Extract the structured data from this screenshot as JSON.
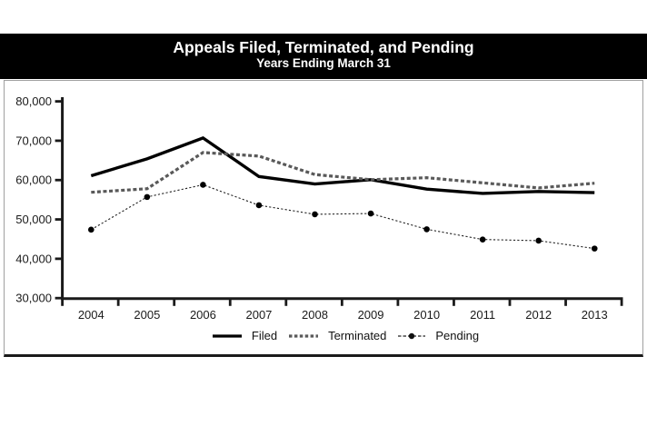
{
  "banner": {
    "title": "Appeals Filed, Terminated, and Pending",
    "subtitle": "Years Ending March 31"
  },
  "chart_data": {
    "type": "line",
    "title": "Appeals Filed, Terminated, and Pending",
    "subtitle": "Years Ending March 31",
    "categories": [
      "2004",
      "2005",
      "2006",
      "2007",
      "2008",
      "2009",
      "2010",
      "2011",
      "2012",
      "2013"
    ],
    "series": [
      {
        "name": "Filed",
        "line_style": "solid",
        "color": "#000000",
        "values": [
          61100,
          65400,
          70700,
          60900,
          59000,
          60100,
          57700,
          56600,
          57100,
          56800
        ]
      },
      {
        "name": "Terminated",
        "line_style": "dashed",
        "color": "#595959",
        "values": [
          56900,
          57800,
          67000,
          66100,
          61400,
          60100,
          60600,
          59300,
          58000,
          59200
        ]
      },
      {
        "name": "Pending",
        "line_style": "dotted-with-markers",
        "color": "#000000",
        "values": [
          47400,
          55700,
          58800,
          53600,
          51300,
          51500,
          47500,
          44900,
          44600,
          42600
        ]
      }
    ],
    "ylim": [
      30000,
      80000
    ],
    "ytick_step": 10000,
    "ytick_labels": [
      "30,000",
      "40,000",
      "50,000",
      "60,000",
      "70,000",
      "80,000"
    ],
    "grid": false,
    "legend_position": "bottom-center",
    "axis_color": "#1a1a1a"
  },
  "legend": {
    "items": [
      {
        "label": "Filed"
      },
      {
        "label": "Terminated"
      },
      {
        "label": "Pending"
      }
    ]
  }
}
